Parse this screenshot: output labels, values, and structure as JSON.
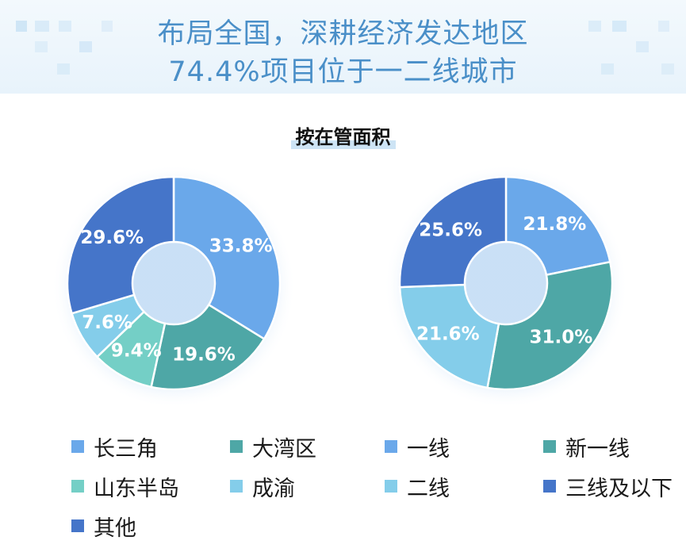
{
  "header": {
    "title_line1": "布局全国，深耕经济发达地区",
    "title_line2": "74.4%项目位于一二线城市"
  },
  "subtitle": "按在管面积",
  "chart_data": [
    {
      "type": "pie",
      "donut": true,
      "categories": [
        "长三角",
        "大湾区",
        "山东半岛",
        "成渝",
        "其他"
      ],
      "values": [
        33.8,
        19.6,
        9.4,
        7.6,
        29.6
      ],
      "labels": [
        "33.8%",
        "19.6%",
        "9.4%",
        "7.6%",
        "29.6%"
      ],
      "colors": [
        "#6aa8ea",
        "#4ea7a6",
        "#74cfc6",
        "#84cdea",
        "#4575c9"
      ],
      "legend_columns": 2
    },
    {
      "type": "pie",
      "donut": true,
      "categories": [
        "一线",
        "新一线",
        "二线",
        "三线及以下"
      ],
      "values": [
        21.8,
        31.0,
        21.6,
        25.6
      ],
      "labels": [
        "21.8%",
        "31.0%",
        "21.6%",
        "25.6%"
      ],
      "colors": [
        "#6aa8ea",
        "#4ea7a6",
        "#84cdea",
        "#4575c9"
      ],
      "legend_columns": 2
    }
  ]
}
